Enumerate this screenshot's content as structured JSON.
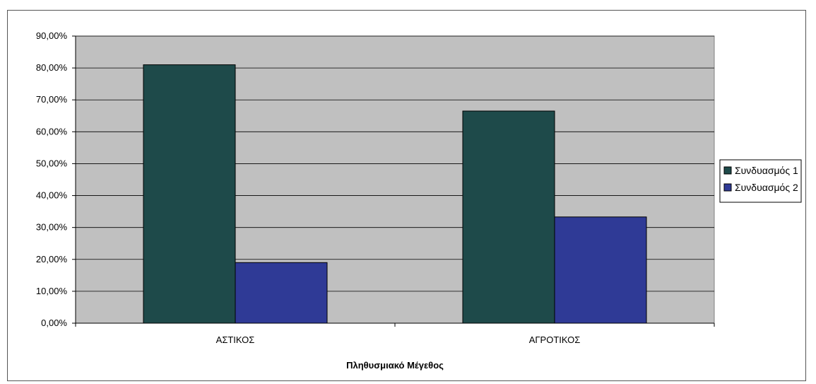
{
  "chart_data": {
    "type": "bar",
    "categories": [
      "ΑΣΤΙΚΟΣ",
      "ΑΓΡΟΤΙΚΟΣ"
    ],
    "series": [
      {
        "name": "Συνδυασμός 1",
        "values": [
          0.81,
          0.665
        ],
        "color": "#1e4a4a"
      },
      {
        "name": "Συνδυασμός 2",
        "values": [
          0.19,
          0.333
        ],
        "color": "#2f3a96"
      }
    ],
    "ylim": [
      0,
      0.9
    ],
    "yticks": [
      0,
      0.1,
      0.2,
      0.3,
      0.4,
      0.5,
      0.6,
      0.7,
      0.8,
      0.9
    ],
    "ytick_labels": [
      "0,00%",
      "10,00%",
      "20,00%",
      "30,00%",
      "40,00%",
      "50,00%",
      "60,00%",
      "70,00%",
      "80,00%",
      "90,00%"
    ],
    "xlabel": "Πληθυσμιακό Μέγεθος",
    "ylabel": "",
    "grid": true,
    "legend_position": "right",
    "plot_background": "#c0c0c0"
  }
}
